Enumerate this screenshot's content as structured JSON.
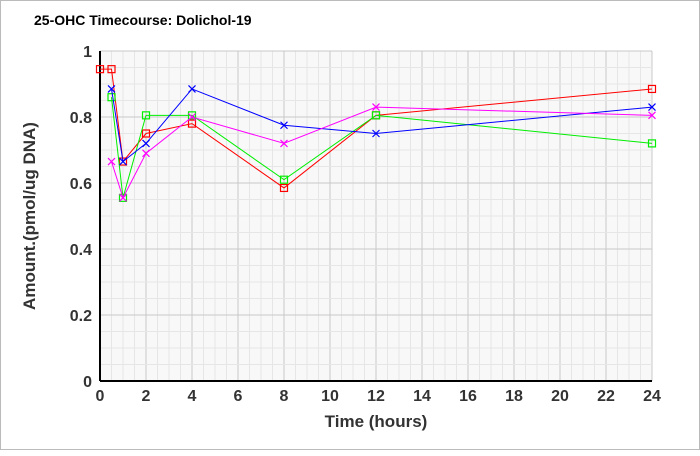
{
  "chart_data": {
    "type": "line",
    "title": "25-OHC Timecourse: Dolichol-19",
    "xlabel": "Time (hours)",
    "ylabel": "Amount.(pmol/ug DNA)",
    "xlim": [
      0,
      24
    ],
    "ylim": [
      0,
      1
    ],
    "xticks": [
      0,
      2,
      4,
      6,
      8,
      10,
      12,
      14,
      16,
      18,
      20,
      22,
      24
    ],
    "yticks": [
      0,
      0.2,
      0.4,
      0.6,
      0.8,
      1
    ],
    "ytick_labels": [
      "0",
      "0.2",
      "0.4",
      "0.6",
      "0.8",
      "1"
    ],
    "grid": true,
    "series": [
      {
        "name": "red",
        "color": "#ff0000",
        "marker": "square",
        "x": [
          0,
          0.5,
          1,
          2,
          4,
          8,
          12,
          24
        ],
        "y": [
          0.945,
          0.945,
          0.665,
          0.75,
          0.78,
          0.585,
          0.805,
          0.885
        ]
      },
      {
        "name": "green",
        "color": "#00ee00",
        "marker": "square",
        "x": [
          0.5,
          1,
          2,
          4,
          8,
          12,
          24
        ],
        "y": [
          0.86,
          0.555,
          0.805,
          0.805,
          0.61,
          0.805,
          0.72
        ]
      },
      {
        "name": "blue",
        "color": "#0000ff",
        "marker": "x",
        "x": [
          0.5,
          1,
          2,
          4,
          8,
          12,
          24
        ],
        "y": [
          0.885,
          0.665,
          0.72,
          0.885,
          0.775,
          0.75,
          0.83
        ]
      },
      {
        "name": "magenta",
        "color": "#ff00ff",
        "marker": "x",
        "x": [
          0.5,
          1,
          2,
          4,
          8,
          12,
          24
        ],
        "y": [
          0.665,
          0.555,
          0.69,
          0.8,
          0.72,
          0.83,
          0.805
        ]
      }
    ]
  }
}
